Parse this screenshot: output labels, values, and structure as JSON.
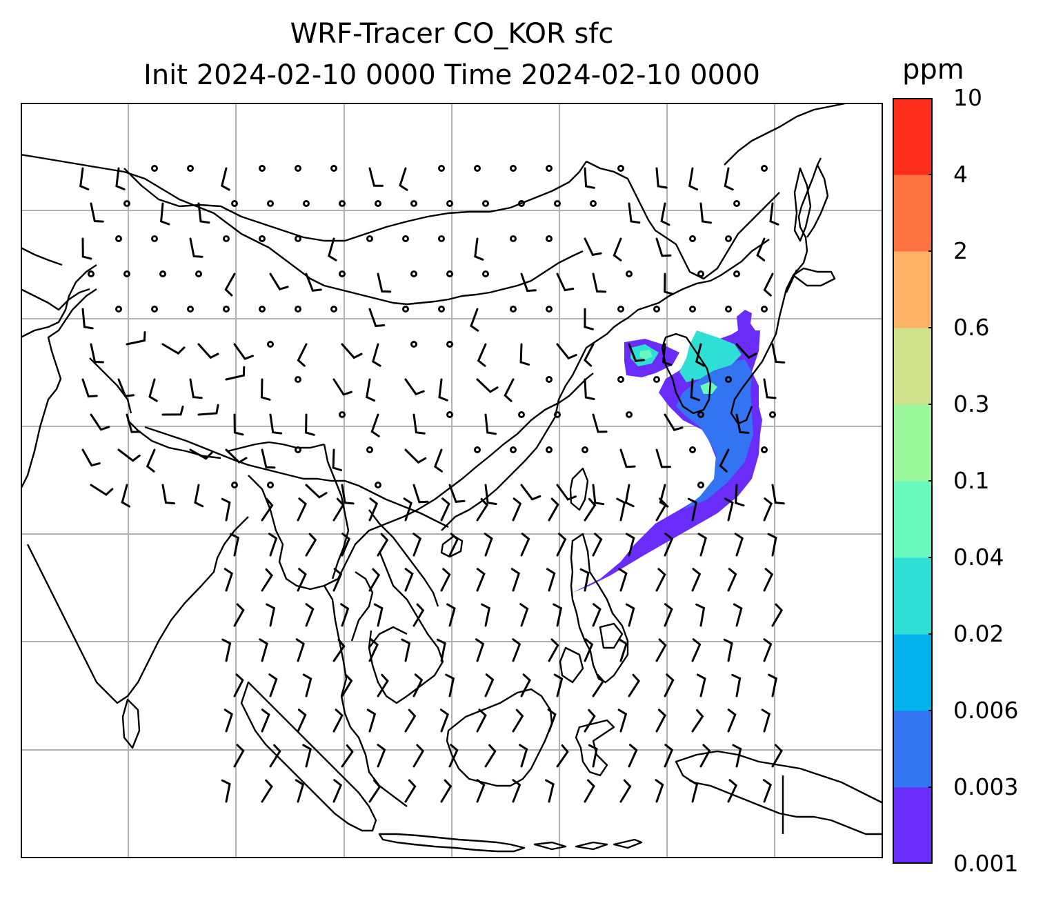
{
  "title": {
    "line1": "WRF-Tracer CO_KOR sfc",
    "line2": "Init 2024-02-10 0000 Time 2024-02-10 0000"
  },
  "colorbar": {
    "unit": "ppm",
    "levels": [
      "0.001",
      "0.003",
      "0.006",
      "0.02",
      "0.04",
      "0.1",
      "0.3",
      "0.6",
      "2",
      "4",
      "10"
    ],
    "colors": [
      "#6a2cf8",
      "#3274f2",
      "#03b1ec",
      "#2fdfd6",
      "#69f9bf",
      "#9af89a",
      "#cfe18a",
      "#fcb165",
      "#fe7140",
      "#ff2d1c"
    ]
  },
  "map": {
    "gridlines": true,
    "gridline_color": "#b0b0b0",
    "coastline_color": "#000000",
    "plume_colors": {
      "outer": "#6a2cf8",
      "mid": "#3274f2",
      "inner": "#2fdfd6",
      "core": "#69f9bf"
    }
  }
}
